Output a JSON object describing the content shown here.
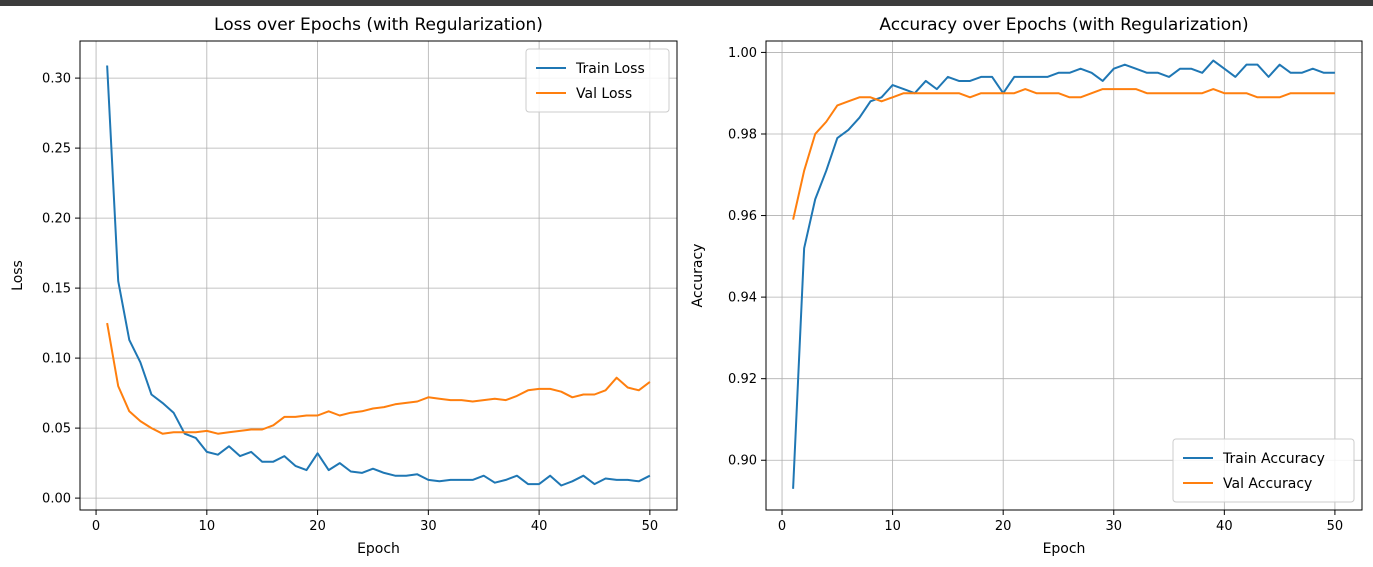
{
  "chart_data": [
    {
      "type": "line",
      "title": "Loss over Epochs (with Regularization)",
      "xlabel": "Epoch",
      "ylabel": "Loss",
      "xlim": [
        -1.45,
        52.45
      ],
      "ylim": [
        -0.0085,
        0.3265
      ],
      "xticks": [
        0,
        10,
        20,
        30,
        40,
        50
      ],
      "yticks": [
        0.0,
        0.05,
        0.1,
        0.15,
        0.2,
        0.25,
        0.3
      ],
      "ytick_decimals": 2,
      "grid": true,
      "legend_position": "top-right",
      "x": [
        1,
        2,
        3,
        4,
        5,
        6,
        7,
        8,
        9,
        10,
        11,
        12,
        13,
        14,
        15,
        16,
        17,
        18,
        19,
        20,
        21,
        22,
        23,
        24,
        25,
        26,
        27,
        28,
        29,
        30,
        31,
        32,
        33,
        34,
        35,
        36,
        37,
        38,
        39,
        40,
        41,
        42,
        43,
        44,
        45,
        46,
        47,
        48,
        49,
        50
      ],
      "series": [
        {
          "name": "Train Loss",
          "color": "#1f77b4",
          "values": [
            0.309,
            0.155,
            0.113,
            0.097,
            0.074,
            0.068,
            0.061,
            0.046,
            0.043,
            0.033,
            0.031,
            0.037,
            0.03,
            0.033,
            0.026,
            0.026,
            0.03,
            0.023,
            0.02,
            0.032,
            0.02,
            0.025,
            0.019,
            0.018,
            0.021,
            0.018,
            0.016,
            0.016,
            0.017,
            0.013,
            0.012,
            0.013,
            0.013,
            0.013,
            0.016,
            0.011,
            0.013,
            0.016,
            0.01,
            0.01,
            0.016,
            0.009,
            0.012,
            0.016,
            0.01,
            0.014,
            0.013,
            0.013,
            0.012,
            0.016
          ]
        },
        {
          "name": "Val Loss",
          "color": "#ff7f0e",
          "values": [
            0.125,
            0.08,
            0.062,
            0.055,
            0.05,
            0.046,
            0.047,
            0.047,
            0.047,
            0.048,
            0.046,
            0.047,
            0.048,
            0.049,
            0.049,
            0.052,
            0.058,
            0.058,
            0.059,
            0.059,
            0.062,
            0.059,
            0.061,
            0.062,
            0.064,
            0.065,
            0.067,
            0.068,
            0.069,
            0.072,
            0.071,
            0.07,
            0.07,
            0.069,
            0.07,
            0.071,
            0.07,
            0.073,
            0.077,
            0.078,
            0.078,
            0.076,
            0.072,
            0.074,
            0.074,
            0.077,
            0.086,
            0.079,
            0.077,
            0.083
          ]
        }
      ]
    },
    {
      "type": "line",
      "title": "Accuracy over Epochs (with Regularization)",
      "xlabel": "Epoch",
      "ylabel": "Accuracy",
      "xlim": [
        -1.45,
        52.45
      ],
      "ylim": [
        0.8878,
        1.0028
      ],
      "xticks": [
        0,
        10,
        20,
        30,
        40,
        50
      ],
      "yticks": [
        0.9,
        0.92,
        0.94,
        0.96,
        0.98,
        1.0
      ],
      "ytick_decimals": 2,
      "grid": true,
      "legend_position": "bottom-right",
      "x": [
        1,
        2,
        3,
        4,
        5,
        6,
        7,
        8,
        9,
        10,
        11,
        12,
        13,
        14,
        15,
        16,
        17,
        18,
        19,
        20,
        21,
        22,
        23,
        24,
        25,
        26,
        27,
        28,
        29,
        30,
        31,
        32,
        33,
        34,
        35,
        36,
        37,
        38,
        39,
        40,
        41,
        42,
        43,
        44,
        45,
        46,
        47,
        48,
        49,
        50
      ],
      "series": [
        {
          "name": "Train Accuracy",
          "color": "#1f77b4",
          "values": [
            0.893,
            0.952,
            0.964,
            0.971,
            0.979,
            0.981,
            0.984,
            0.988,
            0.989,
            0.992,
            0.991,
            0.99,
            0.993,
            0.991,
            0.994,
            0.993,
            0.993,
            0.994,
            0.994,
            0.99,
            0.994,
            0.994,
            0.994,
            0.994,
            0.995,
            0.995,
            0.996,
            0.995,
            0.993,
            0.996,
            0.997,
            0.996,
            0.995,
            0.995,
            0.994,
            0.996,
            0.996,
            0.995,
            0.998,
            0.996,
            0.994,
            0.997,
            0.997,
            0.994,
            0.997,
            0.995,
            0.995,
            0.996,
            0.995,
            0.995
          ]
        },
        {
          "name": "Val Accuracy",
          "color": "#ff7f0e",
          "values": [
            0.959,
            0.971,
            0.98,
            0.983,
            0.987,
            0.988,
            0.989,
            0.989,
            0.988,
            0.989,
            0.99,
            0.99,
            0.99,
            0.99,
            0.99,
            0.99,
            0.989,
            0.99,
            0.99,
            0.99,
            0.99,
            0.991,
            0.99,
            0.99,
            0.99,
            0.989,
            0.989,
            0.99,
            0.991,
            0.991,
            0.991,
            0.991,
            0.99,
            0.99,
            0.99,
            0.99,
            0.99,
            0.99,
            0.991,
            0.99,
            0.99,
            0.99,
            0.989,
            0.989,
            0.989,
            0.99,
            0.99,
            0.99,
            0.99,
            0.99
          ]
        }
      ]
    }
  ]
}
